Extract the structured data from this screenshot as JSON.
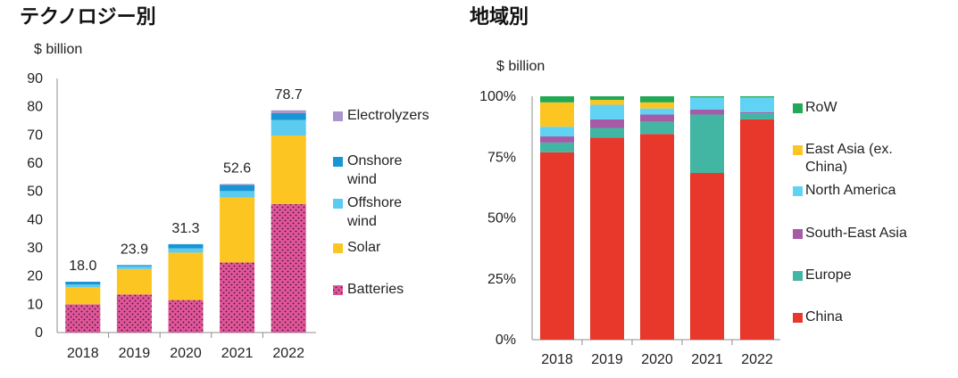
{
  "colors": {
    "batteries": "#e2559b",
    "solar": "#fdc521",
    "offshore": "#5bcbef",
    "onshore": "#1a95d3",
    "electrolyzers": "#a995cc",
    "china": "#e8382c",
    "europe": "#42b5a3",
    "south_east_asia": "#a55ba6",
    "north_america": "#60d3f5",
    "east_asia": "#fdc521",
    "row": "#22a955"
  },
  "chart_data": [
    {
      "type": "bar",
      "stacked": true,
      "title": "テクノロジー別",
      "unit_label": "$ billion",
      "categories": [
        "2018",
        "2019",
        "2020",
        "2021",
        "2022"
      ],
      "ylim": [
        0,
        90
      ],
      "yticks": [
        "0",
        "10",
        "20",
        "30",
        "40",
        "50",
        "60",
        "70",
        "80",
        "90"
      ],
      "series": [
        {
          "key": "batteries",
          "name": "Batteries",
          "values": [
            10.0,
            13.5,
            11.5,
            24.8,
            45.5
          ]
        },
        {
          "key": "solar",
          "name": "Solar",
          "values": [
            6.0,
            9.0,
            16.8,
            23.0,
            24.3
          ]
        },
        {
          "key": "offshore",
          "name": "Offshore\nwind",
          "values": [
            1.0,
            1.0,
            1.5,
            2.3,
            5.5
          ]
        },
        {
          "key": "onshore",
          "name": "Onshore\nwind",
          "values": [
            1.0,
            0.4,
            1.5,
            2.2,
            2.4
          ]
        },
        {
          "key": "electrolyzers",
          "name": "Electrolyzers",
          "values": [
            0.0,
            0.0,
            0.0,
            0.3,
            1.0
          ]
        }
      ],
      "totals": [
        "18.0",
        "23.9",
        "31.3",
        "52.6",
        "78.7"
      ],
      "legend_order": [
        "electrolyzers",
        "onshore",
        "offshore",
        "solar",
        "batteries"
      ],
      "legend_placement": "right"
    },
    {
      "type": "bar",
      "stacked": true,
      "percent": true,
      "title": "地域別",
      "unit_label": "$ billion",
      "categories": [
        "2018",
        "2019",
        "2020",
        "2021",
        "2022"
      ],
      "ylim": [
        0,
        100
      ],
      "yticks": [
        "0%",
        "25%",
        "50%",
        "75%",
        "100%"
      ],
      "series": [
        {
          "key": "china",
          "name": "China",
          "values": [
            77,
            83,
            84.5,
            68.5,
            90.5
          ]
        },
        {
          "key": "europe",
          "name": "Europe",
          "values": [
            4,
            4,
            5,
            24,
            2.5
          ]
        },
        {
          "key": "south_east_asia",
          "name": "South-East Asia",
          "values": [
            2.5,
            3.5,
            3,
            2,
            0.5
          ]
        },
        {
          "key": "north_america",
          "name": "North America",
          "values": [
            4,
            6,
            2.5,
            5,
            6
          ]
        },
        {
          "key": "east_asia",
          "name": "East Asia (ex.\nChina)",
          "values": [
            10,
            2,
            2.5,
            0,
            0
          ]
        },
        {
          "key": "row",
          "name": "RoW",
          "values": [
            2.5,
            1.5,
            2.5,
            0.5,
            0.5
          ]
        }
      ],
      "legend_order": [
        "row",
        "east_asia",
        "north_america",
        "south_east_asia",
        "europe",
        "china"
      ],
      "legend_placement": "right"
    }
  ]
}
